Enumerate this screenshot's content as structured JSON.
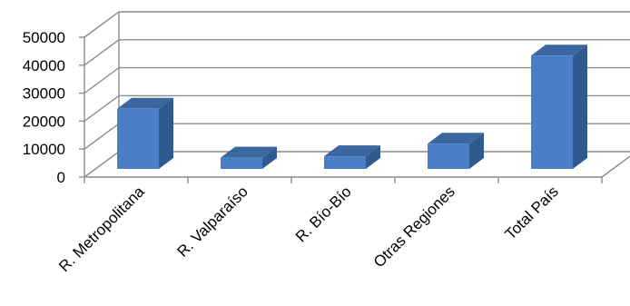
{
  "chart_data": {
    "type": "bar",
    "categories": [
      "R. Metropolitana",
      "R. Valparaíso",
      "R. Bío-Bío",
      "Otras Regiones",
      "Total País"
    ],
    "values": [
      21500,
      4000,
      4500,
      9000,
      40500
    ],
    "yticks": [
      0,
      10000,
      20000,
      30000,
      40000,
      50000
    ],
    "ylim": [
      0,
      50000
    ],
    "grid": true,
    "three_d": true,
    "colors": {
      "bar_front": "#4a7ec7",
      "bar_side": "#2e5a8e",
      "bar_top": "#3a679f",
      "grid": "#8c8c8c"
    }
  }
}
